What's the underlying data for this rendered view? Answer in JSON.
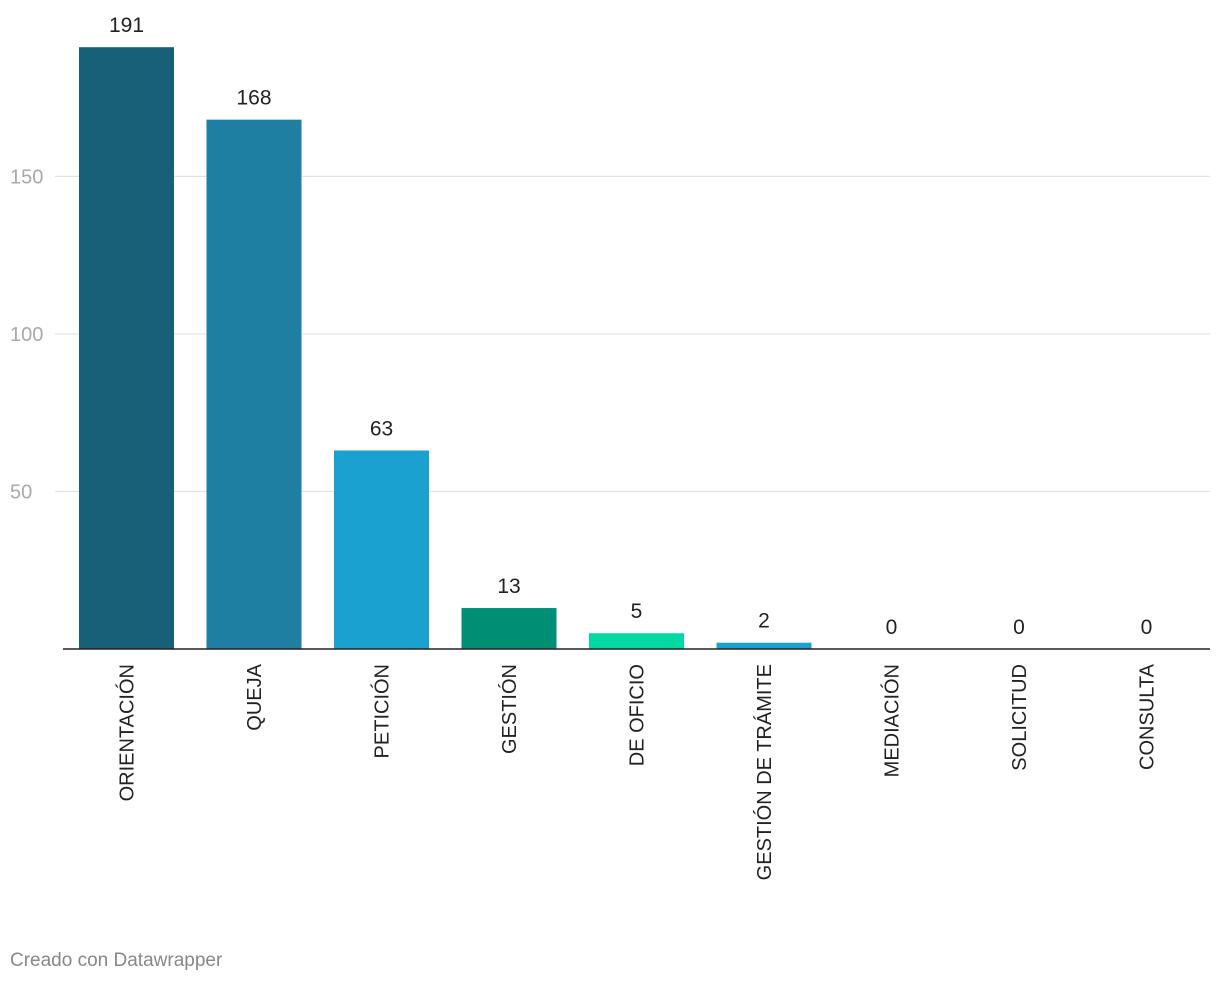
{
  "chart_data": {
    "type": "bar",
    "title": "",
    "xlabel": "",
    "ylabel": "",
    "categories": [
      "ORIENTACIÓN",
      "QUEJA",
      "PETICIÓN",
      "GESTIÓN",
      "DE OFICIO",
      "GESTIÓN DE TRÁMITE",
      "MEDIACIÓN",
      "SOLICITUD",
      "CONSULTA"
    ],
    "values": [
      191,
      168,
      63,
      13,
      5,
      2,
      0,
      0,
      0
    ],
    "colors": [
      "#185f78",
      "#1e7fa2",
      "#1aa1cf",
      "#008f74",
      "#00d9a2",
      "#1aa1cf",
      "#1aa1cf",
      "#1aa1cf",
      "#1aa1cf"
    ],
    "yticks": [
      50,
      100,
      150
    ],
    "ylim": [
      0,
      191
    ],
    "grid": true,
    "legend": "none"
  },
  "footer": {
    "credit": "Creado con Datawrapper"
  }
}
